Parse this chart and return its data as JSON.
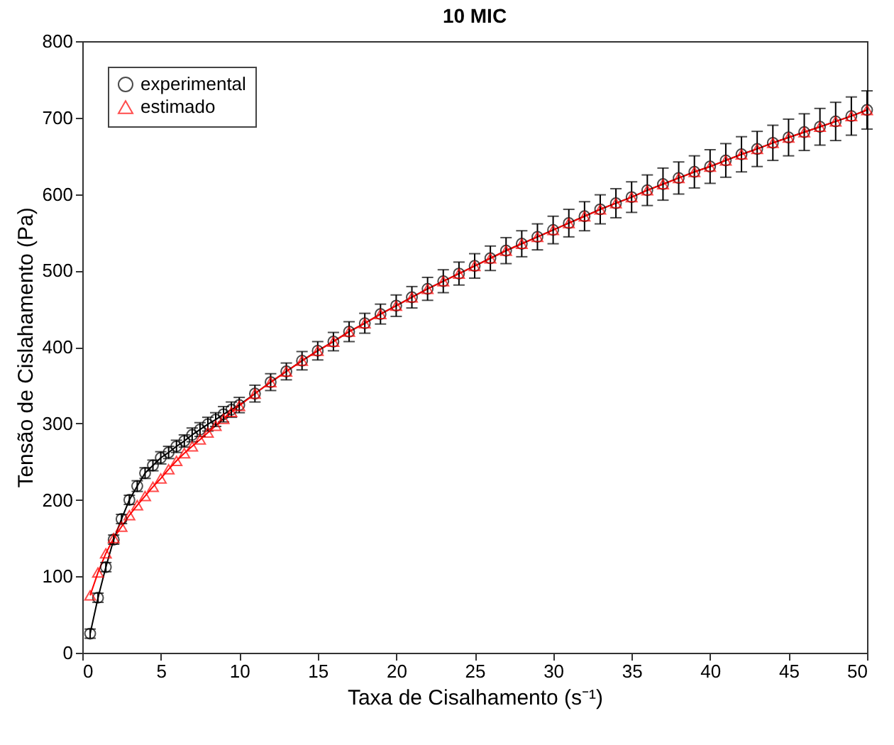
{
  "chart_data": {
    "type": "line",
    "title": "10 MIC",
    "xlabel": "Taxa de Cisalhamento (s⁻¹)",
    "ylabel": "Tensão de Cislahamento (Pa)",
    "x": [
      0.5,
      1,
      1.5,
      2,
      2.5,
      3,
      3.5,
      4,
      4.5,
      5,
      5.5,
      6,
      6.5,
      7,
      7.5,
      8,
      8.5,
      9,
      9.5,
      10,
      11,
      12,
      13,
      14,
      15,
      16,
      17,
      18,
      19,
      20,
      21,
      22,
      23,
      24,
      25,
      26,
      27,
      28,
      29,
      30,
      31,
      32,
      33,
      34,
      35,
      36,
      37,
      38,
      39,
      40,
      41,
      42,
      43,
      44,
      45,
      46,
      47,
      48,
      49,
      50
    ],
    "series": [
      {
        "name": "experimental",
        "color": "#000000",
        "marker": "circle",
        "values": [
          25,
          72,
          112,
          148,
          175,
          200,
          218,
          235,
          245,
          255,
          262,
          270,
          277,
          285,
          292,
          299,
          305,
          312,
          318,
          324,
          339,
          354,
          368,
          382,
          395,
          407,
          420,
          431,
          443,
          454,
          465,
          476,
          486,
          496,
          506,
          516,
          526,
          535,
          544,
          553,
          562,
          571,
          580,
          588,
          596,
          605,
          613,
          621,
          629,
          636,
          644,
          652,
          659,
          667,
          674,
          681,
          688,
          695,
          702,
          710
        ],
        "errors": [
          6,
          6,
          6,
          6,
          6,
          6,
          7,
          7,
          7,
          8,
          8,
          8,
          8,
          9,
          9,
          9,
          9,
          10,
          10,
          10,
          11,
          11,
          11,
          12,
          12,
          12,
          13,
          13,
          13,
          14,
          14,
          15,
          15,
          15,
          16,
          16,
          17,
          17,
          17,
          18,
          18,
          19,
          19,
          19,
          20,
          20,
          21,
          21,
          21,
          22,
          22,
          23,
          23,
          23,
          24,
          24,
          24,
          25,
          25,
          25
        ]
      },
      {
        "name": "estimado",
        "color": "#ff0000",
        "marker": "triangle",
        "values": [
          75,
          105,
          130,
          150,
          165,
          180,
          193,
          205,
          217,
          228,
          240,
          251,
          261,
          270,
          279,
          288,
          297,
          306,
          315,
          323,
          339,
          354,
          368,
          382,
          395,
          407,
          420,
          431,
          443,
          454,
          465,
          476,
          486,
          496,
          506,
          516,
          526,
          535,
          544,
          553,
          562,
          571,
          580,
          588,
          596,
          605,
          613,
          621,
          629,
          636,
          644,
          652,
          659,
          667,
          674,
          681,
          688,
          695,
          702,
          710
        ]
      }
    ],
    "xlim": [
      0,
      50
    ],
    "xticks": [
      0,
      5,
      10,
      15,
      20,
      25,
      30,
      35,
      40,
      45,
      50
    ],
    "ylim": [
      0,
      800
    ],
    "yticks": [
      0,
      100,
      200,
      300,
      400,
      500,
      600,
      700,
      800
    ],
    "legend": "top left"
  }
}
